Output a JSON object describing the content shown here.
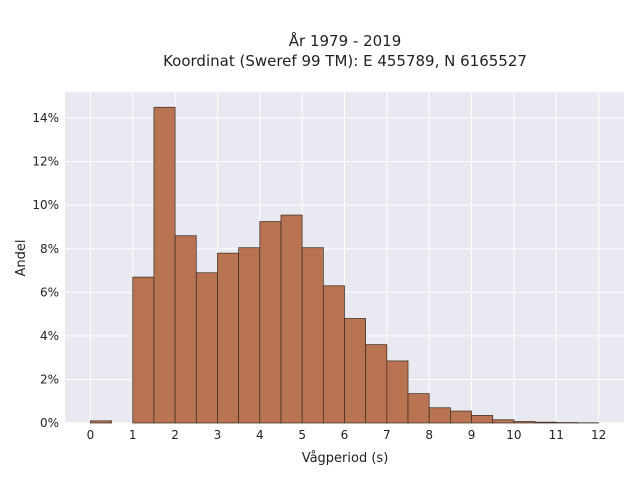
{
  "chart_data": {
    "type": "bar",
    "title_line1": "År 1979 - 2019",
    "title_line2": "Koordinat (Sweref 99 TM): E 455789, N 6165527",
    "xlabel": "Vågperiod (s)",
    "ylabel": "Andel",
    "x_ticks": [
      "0",
      "1",
      "2",
      "3",
      "4",
      "5",
      "6",
      "7",
      "8",
      "9",
      "10",
      "11",
      "12"
    ],
    "y_ticks": [
      "0%",
      "2%",
      "4%",
      "6%",
      "8%",
      "10%",
      "12%",
      "14%"
    ],
    "xlim": [
      -0.6,
      12.6
    ],
    "ylim": [
      0,
      15.2
    ],
    "grid": true,
    "bar_color": "#b87350",
    "bar_width": 0.5,
    "bins": [
      {
        "x": 0.25,
        "value": 0.1
      },
      {
        "x": 1.25,
        "value": 6.7
      },
      {
        "x": 1.75,
        "value": 14.5
      },
      {
        "x": 2.25,
        "value": 8.6
      },
      {
        "x": 2.75,
        "value": 6.9
      },
      {
        "x": 3.25,
        "value": 7.8
      },
      {
        "x": 3.75,
        "value": 8.05
      },
      {
        "x": 4.25,
        "value": 9.25
      },
      {
        "x": 4.75,
        "value": 9.55
      },
      {
        "x": 5.25,
        "value": 8.05
      },
      {
        "x": 5.75,
        "value": 6.3
      },
      {
        "x": 6.25,
        "value": 4.8
      },
      {
        "x": 6.75,
        "value": 3.6
      },
      {
        "x": 7.25,
        "value": 2.85
      },
      {
        "x": 7.75,
        "value": 1.35
      },
      {
        "x": 8.25,
        "value": 0.7
      },
      {
        "x": 8.75,
        "value": 0.55
      },
      {
        "x": 9.25,
        "value": 0.35
      },
      {
        "x": 9.75,
        "value": 0.15
      },
      {
        "x": 10.25,
        "value": 0.07
      },
      {
        "x": 10.75,
        "value": 0.04
      },
      {
        "x": 11.25,
        "value": 0.02
      },
      {
        "x": 11.75,
        "value": 0.01
      }
    ]
  }
}
